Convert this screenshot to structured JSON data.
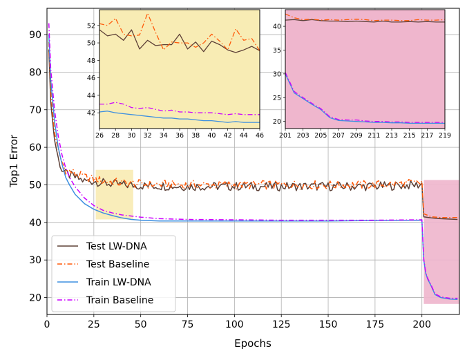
{
  "chart_data": {
    "type": "line",
    "xlabel": "Epochs",
    "ylabel": "Top1 Error",
    "xlim": [
      0,
      220
    ],
    "ylim": [
      15.5,
      97
    ],
    "xticks": [
      0,
      25,
      50,
      75,
      100,
      125,
      150,
      175,
      200
    ],
    "yticks": [
      20,
      30,
      40,
      50,
      60,
      70,
      80,
      90
    ],
    "grid": true,
    "legend_position": "lower-left",
    "series": [
      {
        "name": "Test LW-DNA",
        "color": "#5d4037",
        "style": "solid",
        "x": [
          1,
          2,
          4,
          6,
          8,
          10,
          15,
          20,
          25,
          30,
          40,
          50,
          75,
          100,
          125,
          150,
          175,
          199,
          200,
          201,
          205,
          210,
          219
        ],
        "y": [
          86,
          72,
          62,
          57,
          54,
          53,
          52,
          51,
          51,
          50.5,
          50,
          49.8,
          49.6,
          49.6,
          49.6,
          49.6,
          49.6,
          50,
          50.5,
          41.5,
          41.2,
          41,
          40.8
        ]
      },
      {
        "name": "Test Baseline",
        "color": "#ff5a0a",
        "style": "dashdot",
        "x": [
          1,
          2,
          4,
          6,
          8,
          10,
          15,
          20,
          25,
          30,
          40,
          50,
          75,
          100,
          125,
          150,
          175,
          199,
          200,
          201,
          205,
          210,
          219
        ],
        "y": [
          88,
          75,
          64,
          59,
          56,
          54,
          53,
          52,
          51.5,
          51,
          50.5,
          50.2,
          50,
          50,
          50,
          50,
          50,
          50.5,
          51,
          42.3,
          41.5,
          41.3,
          41.3
        ]
      },
      {
        "name": "Train LW-DNA",
        "color": "#3d8fe0",
        "style": "solid",
        "x": [
          1,
          2,
          4,
          6,
          8,
          10,
          12,
          15,
          20,
          25,
          30,
          35,
          40,
          45,
          50,
          60,
          75,
          100,
          125,
          150,
          175,
          200,
          201,
          202,
          203,
          205,
          207,
          210,
          215,
          219
        ],
        "y": [
          90,
          78,
          67,
          60,
          55.5,
          52,
          50,
          47.5,
          45,
          43.5,
          42.5,
          41.8,
          41.2,
          40.8,
          40.6,
          40.4,
          40.4,
          40.4,
          40.4,
          40.4,
          40.5,
          40.6,
          30,
          26.5,
          25,
          23,
          20.8,
          20,
          19.6,
          19.5
        ]
      },
      {
        "name": "Train Baseline",
        "color": "#cc00ff",
        "style": "dashdot",
        "x": [
          1,
          2,
          4,
          6,
          8,
          10,
          12,
          15,
          20,
          25,
          30,
          35,
          40,
          45,
          50,
          60,
          75,
          100,
          125,
          150,
          175,
          200,
          201,
          202,
          203,
          205,
          207,
          210,
          215,
          219
        ],
        "y": [
          93,
          81,
          70,
          63,
          58,
          54.5,
          52,
          49.5,
          46.5,
          44.5,
          43.2,
          42.5,
          42,
          41.7,
          41.4,
          41,
          40.8,
          40.7,
          40.6,
          40.6,
          40.6,
          40.7,
          30.2,
          26.7,
          25.2,
          23.2,
          21,
          20.2,
          19.8,
          19.8
        ]
      }
    ],
    "highlights": [
      {
        "x": [
          26,
          46
        ],
        "y": [
          40.8,
          54
        ],
        "color": "#f8ecb4"
      },
      {
        "x": [
          201,
          220
        ],
        "y": [
          18.3,
          51.3
        ],
        "color": "#efb6cd"
      }
    ],
    "insets": [
      {
        "xlim": [
          26,
          46
        ],
        "ylim": [
          40.2,
          53.8
        ],
        "xticks": [
          "26",
          "28",
          "30",
          "32",
          "34",
          "36",
          "38",
          "40",
          "42",
          "44",
          "46"
        ],
        "yticks": [
          "42",
          "44",
          "46",
          "48",
          "50",
          "52"
        ],
        "background": "#f8ecb4",
        "series": [
          {
            "x": [
              26,
              27,
              28,
              29,
              30,
              31,
              32,
              33,
              34,
              35,
              36,
              37,
              38,
              39,
              40,
              41,
              42,
              43,
              44,
              45,
              46
            ],
            "y": [
              51.5,
              50.8,
              51,
              50.3,
              51.5,
              49.3,
              50.3,
              49.7,
              49.8,
              49.8,
              51,
              49.3,
              50.1,
              49,
              50.2,
              49.8,
              49.2,
              48.9,
              49.2,
              49.6,
              49.1
            ]
          },
          {
            "x": [
              26,
              27,
              28,
              29,
              30,
              31,
              32,
              33,
              34,
              35,
              36,
              37,
              38,
              39,
              40,
              41,
              42,
              43,
              44,
              45,
              46
            ],
            "y": [
              52.2,
              52,
              52.8,
              51,
              50.8,
              50.9,
              53.4,
              51.2,
              49.2,
              50.1,
              50,
              50,
              49.5,
              50,
              51,
              50.2,
              49.2,
              51.6,
              50.3,
              50.5,
              49.1
            ]
          },
          {
            "x": [
              26,
              27,
              28,
              29,
              30,
              31,
              32,
              33,
              34,
              35,
              36,
              37,
              38,
              39,
              40,
              41,
              42,
              43,
              44,
              45,
              46
            ],
            "y": [
              42.1,
              42.2,
              42.0,
              41.9,
              41.8,
              41.7,
              41.6,
              41.5,
              41.4,
              41.4,
              41.3,
              41.3,
              41.2,
              41.1,
              41.1,
              41.0,
              40.9,
              41.0,
              40.9,
              40.9,
              40.9
            ]
          },
          {
            "x": [
              26,
              27,
              28,
              29,
              30,
              31,
              32,
              33,
              34,
              35,
              36,
              37,
              38,
              39,
              40,
              41,
              42,
              43,
              44,
              45,
              46
            ],
            "y": [
              43.0,
              43.0,
              43.2,
              43.0,
              42.6,
              42.5,
              42.6,
              42.4,
              42.2,
              42.3,
              42.1,
              42.1,
              42.0,
              42.0,
              42.0,
              41.9,
              41.8,
              41.9,
              41.8,
              41.8,
              41.8
            ]
          }
        ]
      },
      {
        "xlim": [
          201,
          219
        ],
        "ylim": [
          18.5,
          43.5
        ],
        "xticks": [
          "201",
          "203",
          "205",
          "207",
          "209",
          "211",
          "213",
          "215",
          "217",
          "219"
        ],
        "yticks": [
          "20",
          "25",
          "30",
          "35",
          "40"
        ],
        "background": "#efb6cd",
        "series": [
          {
            "x": [
              201,
              202,
              203,
              204,
              205,
              206,
              207,
              208,
              209,
              210,
              211,
              212,
              213,
              214,
              215,
              216,
              217,
              218,
              219
            ],
            "y": [
              41.3,
              41.4,
              41.2,
              41.4,
              41.2,
              41.1,
              41.1,
              41.0,
              41.1,
              41.0,
              40.9,
              41.1,
              40.9,
              40.9,
              41.0,
              40.9,
              41.0,
              40.9,
              40.9
            ]
          },
          {
            "x": [
              201,
              202,
              203,
              204,
              205,
              206,
              207,
              208,
              209,
              210,
              211,
              212,
              213,
              214,
              215,
              216,
              217,
              218,
              219
            ],
            "y": [
              42.6,
              41.8,
              41.4,
              41.5,
              41.3,
              41.4,
              41.3,
              41.4,
              41.5,
              41.4,
              41.2,
              41.3,
              41.3,
              41.2,
              41.2,
              41.4,
              41.3,
              41.3,
              41.4
            ]
          },
          {
            "x": [
              201,
              202,
              203,
              204,
              205,
              206,
              207,
              208,
              209,
              210,
              211,
              212,
              213,
              214,
              215,
              216,
              217,
              218,
              219
            ],
            "y": [
              30,
              26,
              24.8,
              23.6,
              22.5,
              20.8,
              20.2,
              20.1,
              20.0,
              19.9,
              19.8,
              19.8,
              19.7,
              19.7,
              19.6,
              19.6,
              19.6,
              19.6,
              19.6
            ]
          },
          {
            "x": [
              201,
              202,
              203,
              204,
              205,
              206,
              207,
              208,
              209,
              210,
              211,
              212,
              213,
              214,
              215,
              216,
              217,
              218,
              219
            ],
            "y": [
              30.3,
              26.3,
              25.0,
              23.8,
              22.7,
              21.0,
              20.4,
              20.3,
              20.3,
              20.1,
              20.0,
              20.0,
              19.9,
              19.9,
              19.8,
              19.8,
              19.8,
              19.8,
              19.8
            ]
          }
        ]
      }
    ]
  }
}
